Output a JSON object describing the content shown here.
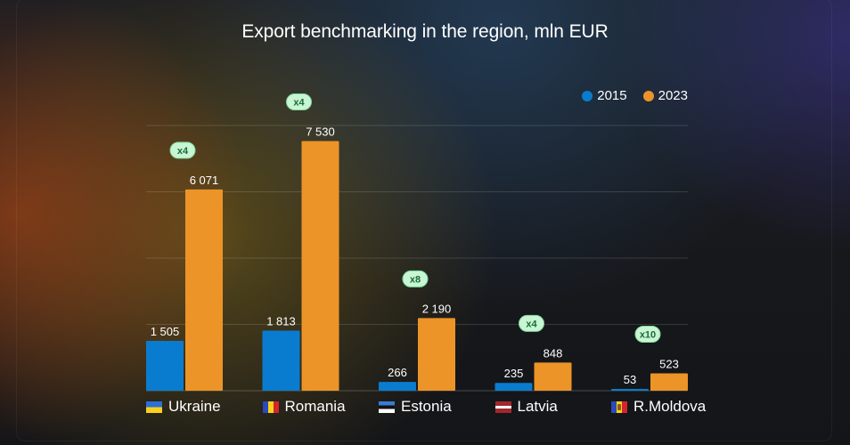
{
  "chart_data": {
    "type": "bar",
    "title": "Export benchmarking in the region, mln EUR",
    "categories": [
      "Ukraine",
      "Romania",
      "Estonia",
      "Latvia",
      "R.Moldova"
    ],
    "series": [
      {
        "name": "2015",
        "color": "#0a7ccf",
        "values": [
          1505,
          1813,
          266,
          235,
          53
        ],
        "labels": [
          "1 505",
          "1 813",
          "266",
          "235",
          "53"
        ]
      },
      {
        "name": "2023",
        "color": "#ec9428",
        "values": [
          6071,
          7530,
          2190,
          848,
          523
        ],
        "labels": [
          "6 071",
          "7 530",
          "2 190",
          "848",
          "523"
        ]
      }
    ],
    "multipliers": [
      "x4",
      "x4",
      "x8",
      "x4",
      "x10"
    ],
    "ylim": [
      0,
      8000
    ],
    "grid": true,
    "legend": "top-right"
  },
  "flags": {
    "Ukraine": [
      "#2d6fd8",
      "#f6d21a"
    ],
    "Romania": [
      "#2b49b8",
      "#f6d21a",
      "#d2262b"
    ],
    "Estonia": [
      "#3a7bd5",
      "#111111",
      "#ffffff"
    ],
    "Latvia": [
      "#a3262f",
      "#ffffff",
      "#a3262f"
    ],
    "R.Moldova": [
      "#2b49b8",
      "#f6d21a",
      "#d2262b"
    ]
  }
}
